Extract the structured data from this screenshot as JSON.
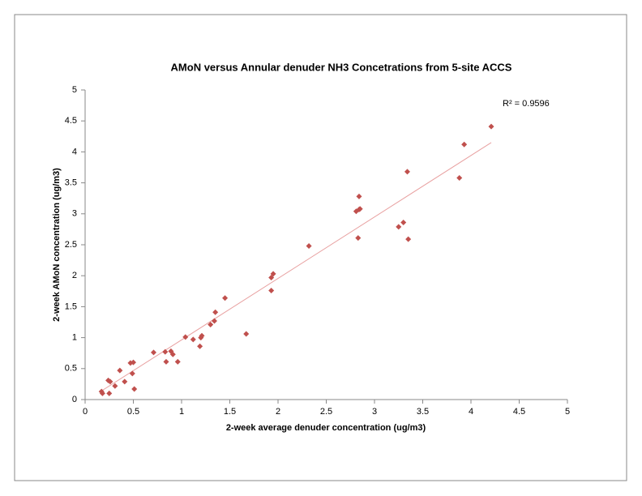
{
  "chart_data": {
    "type": "scatter",
    "title": "AMoN versus Annular denuder NH3 Concetrations from 5-site ACCS",
    "x_label": "2-week average denuder concentration (ug/m3)",
    "y_label": "2-week AMoN concentration (ug/m3)",
    "annotation": "R² = 0.9596",
    "xlim": [
      0,
      5
    ],
    "ylim": [
      0,
      5
    ],
    "xticks": [
      0,
      0.5,
      1,
      1.5,
      2,
      2.5,
      3,
      3.5,
      4,
      4.5,
      5
    ],
    "yticks": [
      0,
      0.5,
      1,
      1.5,
      2,
      2.5,
      3,
      3.5,
      4,
      4.5,
      5
    ],
    "color": "#c0504d",
    "trendline": {
      "color": "#e8a0a0",
      "x": [
        0.17,
        4.21
      ],
      "y": [
        0.14,
        4.15
      ]
    },
    "x": [
      0.17,
      0.18,
      0.24,
      0.26,
      0.25,
      0.31,
      0.36,
      0.41,
      0.47,
      0.5,
      0.49,
      0.51,
      0.71,
      0.83,
      0.84,
      0.89,
      0.91,
      0.96,
      1.04,
      1.12,
      1.19,
      1.2,
      1.21,
      1.3,
      1.34,
      1.35,
      1.45,
      1.67,
      1.93,
      1.93,
      1.95,
      2.32,
      2.81,
      2.83,
      2.84,
      2.85,
      2.84,
      3.25,
      3.3,
      3.34,
      3.35,
      3.88,
      3.93,
      4.21
    ],
    "y": [
      0.13,
      0.1,
      0.31,
      0.29,
      0.1,
      0.22,
      0.47,
      0.29,
      0.59,
      0.6,
      0.42,
      0.17,
      0.76,
      0.77,
      0.61,
      0.78,
      0.73,
      0.61,
      1.01,
      0.97,
      0.86,
      1.0,
      1.03,
      1.21,
      1.27,
      1.41,
      1.64,
      1.06,
      1.76,
      1.97,
      2.03,
      2.48,
      3.04,
      2.61,
      3.07,
      3.08,
      3.28,
      2.79,
      2.86,
      3.68,
      2.59,
      3.58,
      4.12,
      4.41
    ]
  }
}
